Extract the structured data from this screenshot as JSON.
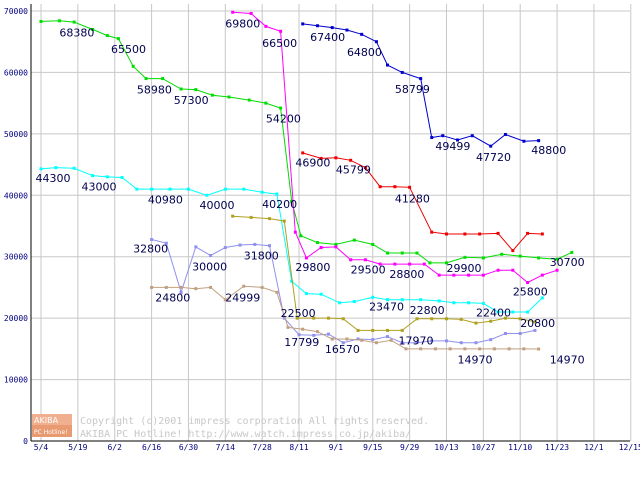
{
  "chart_data": {
    "type": "line",
    "categories": [
      "5/4",
      "5/19",
      "6/2",
      "6/16",
      "6/30",
      "7/14",
      "7/28",
      "8/11",
      "9/1",
      "9/15",
      "9/29",
      "10/13",
      "10/27",
      "11/10",
      "11/23",
      "12/1",
      "12/15"
    ],
    "ylim": [
      0,
      70000
    ],
    "y_ticks": [
      "0",
      "10000",
      "20000",
      "30000",
      "40000",
      "50000",
      "60000",
      "70000"
    ],
    "grid": true,
    "series": [
      {
        "color": "#00dd00",
        "points": [
          [
            0,
            68300
          ],
          [
            0.5,
            68400
          ],
          [
            0.9,
            68200
          ],
          [
            1.4,
            67000
          ],
          [
            1.8,
            66000
          ],
          [
            2.1,
            65500
          ],
          [
            2.5,
            61000
          ],
          [
            2.85,
            59000
          ],
          [
            3.3,
            59000
          ],
          [
            3.8,
            57300
          ],
          [
            4.2,
            57200
          ],
          [
            4.65,
            56300
          ],
          [
            5.1,
            56000
          ],
          [
            5.65,
            55500
          ],
          [
            6.1,
            55000
          ],
          [
            6.5,
            54200
          ],
          [
            6.8,
            39000
          ],
          [
            7.05,
            33400
          ],
          [
            7.5,
            32300
          ],
          [
            8.0,
            32000
          ],
          [
            8.5,
            32700
          ],
          [
            9.0,
            32000
          ],
          [
            9.4,
            30600
          ],
          [
            9.8,
            30600
          ],
          [
            10.2,
            30600
          ],
          [
            10.55,
            29000
          ],
          [
            11.0,
            29000
          ],
          [
            11.5,
            29900
          ],
          [
            12.0,
            29800
          ],
          [
            12.5,
            30400
          ],
          [
            13.0,
            30100
          ],
          [
            13.5,
            29800
          ],
          [
            14.0,
            29600
          ],
          [
            14.4,
            30700
          ]
        ]
      },
      {
        "color": "#ff00ff",
        "points": [
          [
            5.2,
            69800
          ],
          [
            5.7,
            69600
          ],
          [
            6.1,
            67500
          ],
          [
            6.5,
            66700
          ],
          [
            6.9,
            34000
          ],
          [
            7.2,
            29800
          ],
          [
            7.6,
            31500
          ],
          [
            8.0,
            31600
          ],
          [
            8.4,
            29500
          ],
          [
            8.8,
            29500
          ],
          [
            9.2,
            28800
          ],
          [
            9.6,
            28800
          ],
          [
            10.0,
            28800
          ],
          [
            10.4,
            28800
          ],
          [
            10.8,
            27000
          ],
          [
            11.2,
            27000
          ],
          [
            11.6,
            27000
          ],
          [
            12.0,
            27000
          ],
          [
            12.4,
            27800
          ],
          [
            12.8,
            27800
          ],
          [
            13.2,
            25800
          ],
          [
            13.6,
            27000
          ],
          [
            14.0,
            27800
          ]
        ]
      },
      {
        "color": "#0000cc",
        "points": [
          [
            7.1,
            67900
          ],
          [
            7.5,
            67600
          ],
          [
            7.9,
            67300
          ],
          [
            8.3,
            66900
          ],
          [
            8.7,
            66200
          ],
          [
            9.1,
            65000
          ],
          [
            9.4,
            61200
          ],
          [
            9.8,
            60000
          ],
          [
            10.3,
            59000
          ],
          [
            10.6,
            49400
          ],
          [
            10.9,
            49700
          ],
          [
            11.3,
            49000
          ],
          [
            11.7,
            49700
          ],
          [
            12.2,
            48000
          ],
          [
            12.6,
            49900
          ],
          [
            13.1,
            48800
          ],
          [
            13.5,
            48900
          ]
        ]
      },
      {
        "color": "#ee0000",
        "points": [
          [
            7.1,
            46900
          ],
          [
            7.6,
            46000
          ],
          [
            8.0,
            46100
          ],
          [
            8.4,
            45700
          ],
          [
            8.8,
            44500
          ],
          [
            9.2,
            41400
          ],
          [
            9.6,
            41400
          ],
          [
            10.0,
            41300
          ],
          [
            10.6,
            34000
          ],
          [
            11.0,
            33700
          ],
          [
            11.5,
            33700
          ],
          [
            11.9,
            33700
          ],
          [
            12.4,
            33800
          ],
          [
            12.8,
            31000
          ],
          [
            13.2,
            33800
          ],
          [
            13.6,
            33700
          ]
        ]
      },
      {
        "color": "#00ffff",
        "points": [
          [
            0,
            44300
          ],
          [
            0.4,
            44500
          ],
          [
            0.9,
            44400
          ],
          [
            1.4,
            43200
          ],
          [
            1.8,
            43000
          ],
          [
            2.2,
            42900
          ],
          [
            2.6,
            41000
          ],
          [
            3.0,
            41000
          ],
          [
            3.5,
            41000
          ],
          [
            4.0,
            41000
          ],
          [
            4.5,
            40000
          ],
          [
            5.0,
            41000
          ],
          [
            5.5,
            41000
          ],
          [
            6.0,
            40500
          ],
          [
            6.4,
            40200
          ],
          [
            6.8,
            26000
          ],
          [
            7.2,
            24000
          ],
          [
            7.6,
            23900
          ],
          [
            8.1,
            22500
          ],
          [
            8.5,
            22700
          ],
          [
            9.0,
            23400
          ],
          [
            9.4,
            23000
          ],
          [
            9.8,
            23000
          ],
          [
            10.3,
            23000
          ],
          [
            10.8,
            22800
          ],
          [
            11.2,
            22500
          ],
          [
            11.6,
            22500
          ],
          [
            12.0,
            22400
          ],
          [
            12.4,
            21000
          ],
          [
            12.8,
            21000
          ],
          [
            13.2,
            21000
          ],
          [
            13.6,
            23300
          ]
        ]
      },
      {
        "color": "#9090ee",
        "points": [
          [
            3.0,
            32800
          ],
          [
            3.4,
            32200
          ],
          [
            3.8,
            24200
          ],
          [
            4.2,
            31600
          ],
          [
            4.6,
            30200
          ],
          [
            5.0,
            31500
          ],
          [
            5.4,
            31900
          ],
          [
            5.8,
            32000
          ],
          [
            6.2,
            31800
          ],
          [
            6.6,
            20000
          ],
          [
            7.0,
            17300
          ],
          [
            7.4,
            17200
          ],
          [
            7.8,
            17400
          ],
          [
            8.2,
            16000
          ],
          [
            8.6,
            16600
          ],
          [
            9.0,
            16500
          ],
          [
            9.4,
            17000
          ],
          [
            9.8,
            16000
          ],
          [
            10.2,
            16000
          ],
          [
            10.6,
            16300
          ],
          [
            11.0,
            16300
          ],
          [
            11.4,
            16000
          ],
          [
            11.8,
            16000
          ],
          [
            12.2,
            16500
          ],
          [
            12.6,
            17500
          ],
          [
            13.0,
            17500
          ],
          [
            13.4,
            18000
          ]
        ]
      },
      {
        "color": "#b0a020",
        "points": [
          [
            5.2,
            36600
          ],
          [
            5.7,
            36400
          ],
          [
            6.2,
            36200
          ],
          [
            6.6,
            35800
          ],
          [
            6.95,
            20000
          ],
          [
            7.4,
            20000
          ],
          [
            7.8,
            20000
          ],
          [
            8.2,
            19900
          ],
          [
            8.6,
            18000
          ],
          [
            9.0,
            18000
          ],
          [
            9.4,
            18000
          ],
          [
            9.8,
            18000
          ],
          [
            10.2,
            19900
          ],
          [
            10.6,
            19900
          ],
          [
            11.0,
            19900
          ],
          [
            11.4,
            19800
          ],
          [
            11.8,
            19200
          ],
          [
            12.2,
            19500
          ],
          [
            12.6,
            20000
          ],
          [
            13.0,
            19900
          ],
          [
            13.4,
            19400
          ]
        ]
      },
      {
        "color": "#c0a080",
        "points": [
          [
            3.0,
            25000
          ],
          [
            3.4,
            25000
          ],
          [
            3.8,
            25000
          ],
          [
            4.2,
            24800
          ],
          [
            4.6,
            25000
          ],
          [
            5.0,
            23000
          ],
          [
            5.5,
            25200
          ],
          [
            6.0,
            25000
          ],
          [
            6.4,
            24200
          ],
          [
            6.7,
            18500
          ],
          [
            7.1,
            18200
          ],
          [
            7.5,
            17800
          ],
          [
            7.9,
            16600
          ],
          [
            8.3,
            16600
          ],
          [
            8.7,
            16400
          ],
          [
            9.1,
            16000
          ],
          [
            9.5,
            16400
          ],
          [
            9.9,
            15000
          ],
          [
            10.3,
            15000
          ],
          [
            10.7,
            15000
          ],
          [
            11.1,
            15000
          ],
          [
            11.5,
            15000
          ],
          [
            11.9,
            15000
          ],
          [
            12.3,
            15000
          ],
          [
            12.7,
            15000
          ],
          [
            13.1,
            15000
          ],
          [
            13.5,
            14970
          ]
        ]
      }
    ],
    "labels": [
      {
        "text": "68380",
        "x": 0.5,
        "y": 66500
      },
      {
        "text": "65500",
        "x": 1.9,
        "y": 63800
      },
      {
        "text": "58980",
        "x": 2.6,
        "y": 57200
      },
      {
        "text": "57300",
        "x": 3.6,
        "y": 55500
      },
      {
        "text": "69800",
        "x": 5.0,
        "y": 68000
      },
      {
        "text": "66500",
        "x": 6.0,
        "y": 64800
      },
      {
        "text": "54200",
        "x": 6.1,
        "y": 52500
      },
      {
        "text": "67400",
        "x": 7.3,
        "y": 65800
      },
      {
        "text": "64800",
        "x": 8.3,
        "y": 63300
      },
      {
        "text": "58799",
        "x": 9.6,
        "y": 57300
      },
      {
        "text": "46900",
        "x": 6.9,
        "y": 45300
      },
      {
        "text": "45799",
        "x": 8.0,
        "y": 44200
      },
      {
        "text": "41280",
        "x": 9.6,
        "y": 39500
      },
      {
        "text": "49499",
        "x": 10.7,
        "y": 48000
      },
      {
        "text": "47720",
        "x": 11.8,
        "y": 46200
      },
      {
        "text": "48800",
        "x": 13.3,
        "y": 47400
      },
      {
        "text": "44300",
        "x": -0.15,
        "y": 42800
      },
      {
        "text": "43000",
        "x": 1.1,
        "y": 41400
      },
      {
        "text": "40980",
        "x": 2.9,
        "y": 39300
      },
      {
        "text": "40000",
        "x": 4.3,
        "y": 38400
      },
      {
        "text": "40200",
        "x": 6.0,
        "y": 38600
      },
      {
        "text": "32800",
        "x": 2.5,
        "y": 31300
      },
      {
        "text": "30000",
        "x": 4.1,
        "y": 28400
      },
      {
        "text": "31800",
        "x": 5.5,
        "y": 30200
      },
      {
        "text": "24800",
        "x": 3.1,
        "y": 23400
      },
      {
        "text": "24999",
        "x": 5.0,
        "y": 23400
      },
      {
        "text": "22500",
        "x": 6.5,
        "y": 20800
      },
      {
        "text": "17799",
        "x": 6.6,
        "y": 16100
      },
      {
        "text": "16570",
        "x": 7.7,
        "y": 15000
      },
      {
        "text": "29800",
        "x": 6.9,
        "y": 28300
      },
      {
        "text": "29500",
        "x": 8.4,
        "y": 27900
      },
      {
        "text": "28800",
        "x": 9.45,
        "y": 27200
      },
      {
        "text": "29900",
        "x": 11.0,
        "y": 28200
      },
      {
        "text": "23470",
        "x": 8.9,
        "y": 21900
      },
      {
        "text": "22800",
        "x": 10.0,
        "y": 21300
      },
      {
        "text": "17970",
        "x": 9.7,
        "y": 16400
      },
      {
        "text": "22400",
        "x": 11.8,
        "y": 20900
      },
      {
        "text": "25800",
        "x": 12.8,
        "y": 24300
      },
      {
        "text": "30700",
        "x": 13.8,
        "y": 29100
      },
      {
        "text": "20800",
        "x": 13.0,
        "y": 19200
      },
      {
        "text": "14970",
        "x": 11.3,
        "y": 13300
      },
      {
        "text": "14970",
        "x": 13.8,
        "y": 13300
      }
    ]
  },
  "copyright": {
    "line1": "Copyright (c)2001 impress corporation All rights reserved.",
    "line2": "AKIBA PC Hotline!  http://www.watch.impress.co.jp/akiba/"
  },
  "logo": {
    "top": "AKIBA",
    "bottom": "PC Hotline!"
  }
}
